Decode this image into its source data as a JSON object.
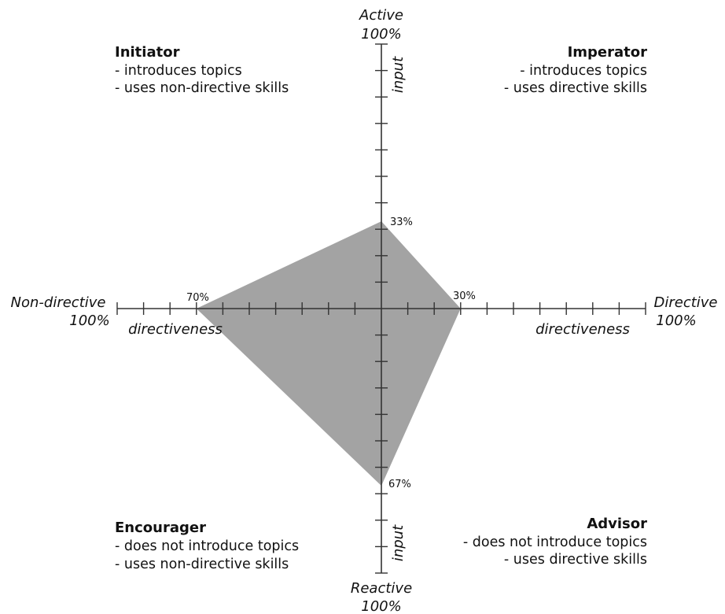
{
  "chart_data": {
    "type": "radar",
    "axes": [
      {
        "key": "active",
        "end_label": "Active",
        "end_value_label": "100%",
        "axis_label": "input",
        "value": 33,
        "value_label": "33%"
      },
      {
        "key": "directive",
        "end_label": "Directive",
        "end_value_label": "100%",
        "axis_label": "directiveness",
        "value": 30,
        "value_label": "30%"
      },
      {
        "key": "reactive",
        "end_label": "Reactive",
        "end_value_label": "100%",
        "axis_label": "input",
        "value": 67,
        "value_label": "67%"
      },
      {
        "key": "non_directive",
        "end_label": "Non-directive",
        "end_value_label": "100%",
        "axis_label": "directiveness",
        "value": 70,
        "value_label": "70%"
      }
    ],
    "scale_max": 100,
    "tick_step": 10,
    "fill_color": "#a3a3a3",
    "axis_color": "#333333",
    "quadrants": {
      "top_left": {
        "title": "Initiator",
        "lines": [
          "- introduces topics",
          "- uses non-directive skills"
        ]
      },
      "top_right": {
        "title": "Imperator",
        "lines": [
          "- introduces topics",
          "- uses directive skills"
        ]
      },
      "bottom_left": {
        "title": "Encourager",
        "lines": [
          "- does not introduce topics",
          "- uses non-directive skills"
        ]
      },
      "bottom_right": {
        "title": "Advisor",
        "lines": [
          "- does not introduce topics",
          "- uses directive skills"
        ]
      }
    }
  }
}
